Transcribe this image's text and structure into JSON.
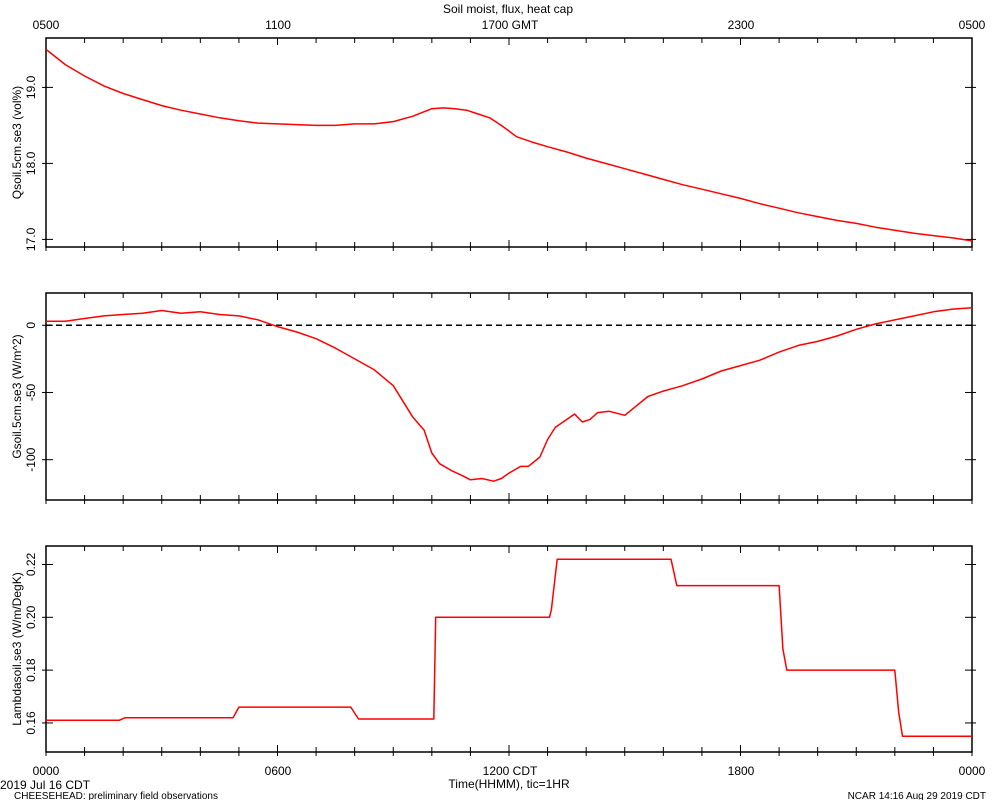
{
  "title": "Soil moist, flux, heat cap",
  "top_axis": {
    "tick_labels": [
      "0500",
      "1100",
      "1700 GMT",
      "2300",
      "0500"
    ]
  },
  "bottom_axis": {
    "tick_labels": [
      "0000",
      "0600",
      "1200 CDT",
      "1800",
      "0000"
    ],
    "xlabel": "Time(HHMM), tic=1HR",
    "date_label": "2019 Jul 16 CDT"
  },
  "footer": {
    "left": "CHEESEHEAD: preliminary field observations",
    "right": "NCAR 14:16 Aug 29 2019 CDT"
  },
  "chart_data": [
    {
      "type": "line",
      "ylabel": "Qsoil.5cm.se3 (vol%)",
      "xlim": [
        0,
        24
      ],
      "ylim": [
        16.9,
        19.65
      ],
      "yticks": [
        17.0,
        18.0,
        19.0
      ],
      "ytick_labels": [
        "17.0",
        "18.0",
        "19.0"
      ],
      "color": "#ff0000",
      "x": [
        0,
        0.5,
        1,
        1.5,
        2,
        2.5,
        3,
        3.5,
        4,
        4.5,
        5,
        5.5,
        6,
        6.5,
        7,
        7.5,
        8,
        8.5,
        9,
        9.5,
        10,
        10.3,
        10.6,
        10.9,
        11.2,
        11.5,
        11.8,
        12.2,
        12.6,
        13,
        13.5,
        14,
        14.5,
        15,
        15.5,
        16,
        16.5,
        17,
        17.5,
        18,
        18.5,
        19,
        19.5,
        20,
        20.5,
        21,
        21.5,
        22,
        22.5,
        23,
        23.5,
        24
      ],
      "y": [
        19.5,
        19.3,
        19.15,
        19.02,
        18.92,
        18.84,
        18.76,
        18.7,
        18.65,
        18.6,
        18.56,
        18.53,
        18.52,
        18.51,
        18.5,
        18.5,
        18.52,
        18.52,
        18.55,
        18.62,
        18.72,
        18.73,
        18.72,
        18.7,
        18.65,
        18.6,
        18.5,
        18.35,
        18.28,
        18.22,
        18.15,
        18.07,
        18.0,
        17.93,
        17.86,
        17.79,
        17.72,
        17.66,
        17.6,
        17.54,
        17.47,
        17.41,
        17.35,
        17.3,
        17.25,
        17.21,
        17.16,
        17.12,
        17.08,
        17.05,
        17.02,
        16.98
      ]
    },
    {
      "type": "line",
      "ylabel": "Gsoil.5cm.se3 (W/m^2)",
      "xlim": [
        0,
        24
      ],
      "ylim": [
        -130,
        24
      ],
      "yticks": [
        -100,
        -50,
        0
      ],
      "ytick_labels": [
        "-100",
        "-50",
        "0"
      ],
      "color": "#ff0000",
      "reference_line": {
        "y": 0,
        "style": "dashed"
      },
      "x": [
        0,
        0.5,
        1,
        1.5,
        2,
        2.5,
        3,
        3.5,
        4,
        4.5,
        5,
        5.5,
        6,
        6.5,
        7,
        7.5,
        8,
        8.5,
        9,
        9.5,
        9.8,
        10,
        10.2,
        10.5,
        10.8,
        11,
        11.3,
        11.6,
        11.8,
        12,
        12.3,
        12.5,
        12.8,
        13,
        13.2,
        13.5,
        13.7,
        13.9,
        14.1,
        14.3,
        14.6,
        15,
        15.3,
        15.6,
        16,
        16.5,
        17,
        17.5,
        18,
        18.5,
        19,
        19.5,
        20,
        20.5,
        21,
        21.5,
        22,
        22.5,
        23,
        23.5,
        24
      ],
      "y": [
        3,
        3,
        5,
        7,
        8,
        9,
        11,
        9,
        10,
        8,
        7,
        4,
        -1,
        -5,
        -10,
        -17,
        -25,
        -33,
        -45,
        -68,
        -78,
        -95,
        -103,
        -108,
        -112,
        -115,
        -114,
        -116,
        -114,
        -110,
        -105,
        -105,
        -98,
        -85,
        -76,
        -70,
        -66,
        -72,
        -70,
        -65,
        -64,
        -67,
        -60,
        -53,
        -49,
        -45,
        -40,
        -34,
        -30,
        -26,
        -20,
        -15,
        -12,
        -8,
        -3,
        1,
        4,
        7,
        10,
        12,
        13
      ]
    },
    {
      "type": "line",
      "ylabel": "Lambdasoil.se3 (W/m/DegK)",
      "xlim": [
        0,
        24
      ],
      "ylim": [
        0.149,
        0.227
      ],
      "yticks": [
        0.16,
        0.18,
        0.2,
        0.22
      ],
      "ytick_labels": [
        "0.16",
        "0.18",
        "0.20",
        "0.22"
      ],
      "color": "#ff0000",
      "x": [
        0,
        1.9,
        2.05,
        4.85,
        5.0,
        7.9,
        8.1,
        10.05,
        10.1,
        13.05,
        13.1,
        13.25,
        16.2,
        16.35,
        19.0,
        19.1,
        19.2,
        22.0,
        22.1,
        22.2,
        24
      ],
      "y": [
        0.161,
        0.161,
        0.162,
        0.162,
        0.166,
        0.166,
        0.1615,
        0.1615,
        0.2,
        0.2,
        0.203,
        0.222,
        0.222,
        0.212,
        0.212,
        0.188,
        0.18,
        0.18,
        0.164,
        0.155,
        0.155
      ]
    }
  ]
}
